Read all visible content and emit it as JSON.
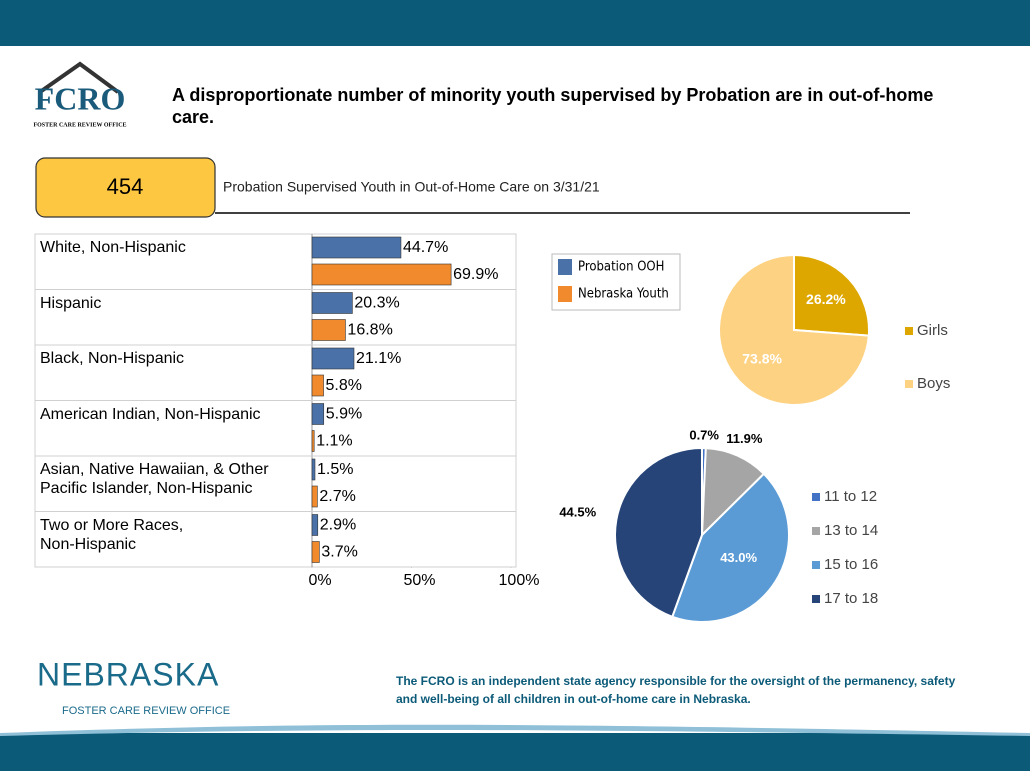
{
  "header": {
    "title": "A disproportionate number of minority youth supervised by Probation are in out-of-home care.",
    "logo_text": "FCRO",
    "logo_subtext": "FOSTER CARE REVIEW OFFICE"
  },
  "highlight": {
    "number": 454,
    "label": "Probation Supervised Youth in Out-of-Home Care on 3/31/21"
  },
  "footer": {
    "brand": "NEBRASKA",
    "brand_sub": "FOSTER CARE REVIEW OFFICE",
    "note": "The FCRO is an independent state agency responsible for the oversight of the permanency, safety and well-being of all children in out-of-home care in Nebraska."
  },
  "chart_data": [
    {
      "type": "hbar",
      "categories": [
        "White, Non-Hispanic",
        "Hispanic",
        "Black, Non-Hispanic",
        "American Indian, Non-Hispanic",
        "Asian, Native Hawaiian, & Other\nPacific Islander, Non-Hispanic",
        "Two or More Races,\nNon-Hispanic"
      ],
      "series": [
        {
          "name": "Probation OOH",
          "color": "#4a72a8",
          "values": [
            44.7,
            20.3,
            21.1,
            5.9,
            1.5,
            2.9
          ],
          "value_labels": [
            "44.7%",
            "20.3%",
            "21.1%",
            "5.9%",
            "1.5%",
            "2.9%"
          ]
        },
        {
          "name": "Nebraska Youth",
          "color": "#f08a2c",
          "values": [
            69.9,
            16.8,
            5.8,
            1.1,
            2.7,
            3.7
          ],
          "value_labels": [
            "69.9%",
            "16.8%",
            "5.8%",
            "1.1%",
            "2.7%",
            "3.7%"
          ]
        }
      ],
      "xlim": [
        0,
        100
      ],
      "xticks": [
        {
          "value": 0,
          "label": "0%"
        },
        {
          "value": 50,
          "label": "50%"
        },
        {
          "value": 100,
          "label": "100%"
        }
      ],
      "grid": true,
      "legend": "right"
    },
    {
      "type": "pie",
      "categories": [
        "Girls",
        "Boys"
      ],
      "values": [
        26.2,
        73.8
      ],
      "value_labels": [
        "26.2%",
        "73.8%"
      ],
      "colors": [
        "#dea700",
        "#fdd283"
      ],
      "legend": "right"
    },
    {
      "type": "pie",
      "categories": [
        "11 to 12",
        "13 to 14",
        "15 to 16",
        "17 to 18"
      ],
      "values": [
        0.7,
        11.9,
        43.0,
        44.5
      ],
      "value_labels": [
        "0.7%",
        "11.9%",
        "43.0%",
        "44.5%"
      ],
      "colors": [
        "#4472c4",
        "#a5a5a5",
        "#5b9bd5",
        "#264478"
      ],
      "legend": "right"
    }
  ]
}
